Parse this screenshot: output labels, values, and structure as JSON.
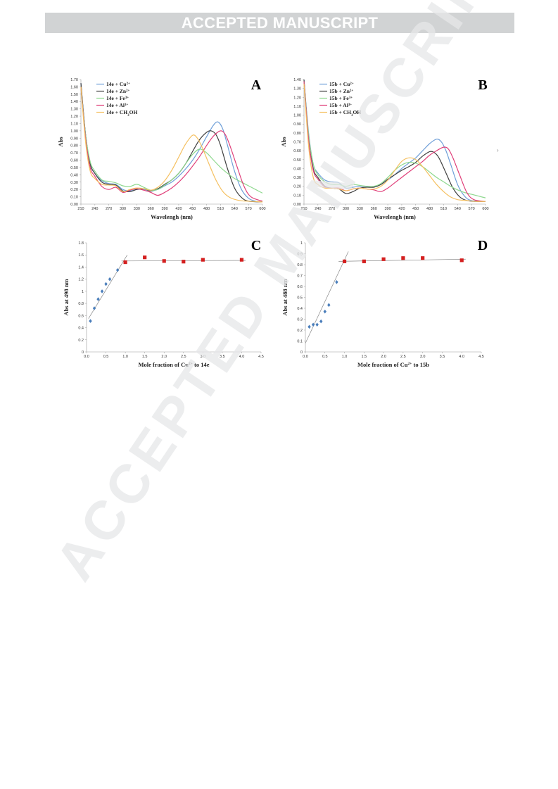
{
  "header": {
    "banner_text": "ACCEPTED MANUSCRIPT"
  },
  "watermark": {
    "text": "ACCEPTED MANUSCRIPT",
    "color": "#e6e7e8"
  },
  "side_mark": "›",
  "chart_data": [
    {
      "id": "A",
      "type": "line",
      "panel_label": "A",
      "xlabel": "Wavelengh (nm)",
      "ylabel": "Abs",
      "xlim": [
        210,
        600
      ],
      "ylim": [
        0,
        1.7
      ],
      "x_ticks": [
        210,
        240,
        270,
        300,
        330,
        360,
        390,
        420,
        450,
        480,
        510,
        540,
        570,
        600
      ],
      "y_ticks": [
        0,
        0.1,
        0.2,
        0.3,
        0.4,
        0.5,
        0.6,
        0.7,
        0.8,
        0.9,
        1.0,
        1.1,
        1.2,
        1.3,
        1.4,
        1.5,
        1.6,
        1.7
      ],
      "y_tick_labels": [
        "0.00",
        "0.10",
        "0.20",
        "0.30",
        "0.40",
        "0.50",
        "0.60",
        "0.70",
        "0.80",
        "0.90",
        "1.00",
        "1.10",
        "1.20",
        "1.30",
        "1.40",
        "1.50",
        "1.60",
        "1.70"
      ],
      "legend_position": "top-left",
      "series": [
        {
          "name": "14e + Cu",
          "ion": "2+",
          "color": "#6f9fd8",
          "x": [
            210,
            220,
            230,
            240,
            255,
            270,
            285,
            300,
            315,
            330,
            345,
            360,
            375,
            390,
            405,
            420,
            435,
            450,
            465,
            480,
            495,
            505,
            515,
            525,
            540,
            555,
            570,
            585,
            600
          ],
          "y": [
            1.65,
            0.95,
            0.55,
            0.42,
            0.32,
            0.28,
            0.27,
            0.2,
            0.18,
            0.2,
            0.2,
            0.18,
            0.2,
            0.25,
            0.3,
            0.38,
            0.48,
            0.6,
            0.75,
            0.92,
            1.08,
            1.12,
            1.02,
            0.8,
            0.45,
            0.2,
            0.08,
            0.04,
            0.03
          ]
        },
        {
          "name": "14e + Zn",
          "ion": "2+",
          "color": "#404040",
          "x": [
            210,
            220,
            230,
            240,
            255,
            270,
            285,
            300,
            315,
            330,
            345,
            360,
            375,
            390,
            405,
            420,
            435,
            450,
            465,
            480,
            490,
            500,
            510,
            525,
            540,
            555,
            570,
            600
          ],
          "y": [
            1.65,
            0.95,
            0.55,
            0.42,
            0.3,
            0.27,
            0.26,
            0.18,
            0.17,
            0.2,
            0.21,
            0.18,
            0.21,
            0.27,
            0.33,
            0.42,
            0.55,
            0.72,
            0.88,
            0.98,
            1.0,
            0.95,
            0.8,
            0.48,
            0.22,
            0.09,
            0.04,
            0.03
          ]
        },
        {
          "name": "14e + Fe",
          "ion": "3+",
          "color": "#8ed88e",
          "x": [
            210,
            220,
            230,
            240,
            255,
            270,
            285,
            300,
            315,
            330,
            345,
            360,
            375,
            390,
            405,
            420,
            435,
            450,
            465,
            480,
            495,
            510,
            525,
            540,
            555,
            570,
            585,
            600
          ],
          "y": [
            1.6,
            0.95,
            0.58,
            0.45,
            0.33,
            0.31,
            0.29,
            0.25,
            0.24,
            0.27,
            0.23,
            0.19,
            0.2,
            0.26,
            0.33,
            0.42,
            0.55,
            0.68,
            0.75,
            0.7,
            0.6,
            0.5,
            0.42,
            0.35,
            0.3,
            0.25,
            0.2,
            0.15
          ]
        },
        {
          "name": "14e + Al",
          "ion": "3+",
          "color": "#e0407a",
          "x": [
            210,
            220,
            230,
            240,
            255,
            270,
            285,
            300,
            315,
            330,
            345,
            360,
            375,
            390,
            405,
            420,
            435,
            450,
            465,
            480,
            495,
            510,
            520,
            530,
            545,
            560,
            575,
            600
          ],
          "y": [
            1.6,
            0.9,
            0.5,
            0.38,
            0.24,
            0.2,
            0.23,
            0.16,
            0.19,
            0.21,
            0.19,
            0.16,
            0.12,
            0.16,
            0.22,
            0.3,
            0.4,
            0.52,
            0.65,
            0.8,
            0.93,
            1.0,
            0.95,
            0.8,
            0.52,
            0.25,
            0.1,
            0.04
          ]
        },
        {
          "name": "14e + CH",
          "ion": "OH",
          "color": "#f5c060",
          "x": [
            210,
            220,
            230,
            240,
            255,
            270,
            285,
            300,
            315,
            330,
            345,
            360,
            375,
            390,
            405,
            420,
            435,
            450,
            460,
            470,
            485,
            500,
            515,
            530,
            550,
            570,
            600
          ],
          "y": [
            1.6,
            0.85,
            0.45,
            0.35,
            0.27,
            0.26,
            0.25,
            0.17,
            0.2,
            0.22,
            0.21,
            0.19,
            0.23,
            0.32,
            0.46,
            0.64,
            0.82,
            0.94,
            0.9,
            0.78,
            0.55,
            0.33,
            0.17,
            0.09,
            0.05,
            0.04,
            0.03
          ]
        }
      ]
    },
    {
      "id": "B",
      "type": "line",
      "panel_label": "B",
      "xlabel": "Wavelengh (nm)",
      "ylabel": "Abs",
      "xlim": [
        210,
        600
      ],
      "ylim": [
        0,
        1.4
      ],
      "x_ticks": [
        210,
        240,
        270,
        300,
        330,
        360,
        390,
        420,
        450,
        480,
        510,
        540,
        570,
        600
      ],
      "y_ticks": [
        0,
        0.1,
        0.2,
        0.3,
        0.4,
        0.5,
        0.6,
        0.7,
        0.8,
        0.9,
        1.0,
        1.1,
        1.2,
        1.3,
        1.4
      ],
      "y_tick_labels": [
        "0.00",
        "0.10",
        "0.20",
        "0.30",
        "0.40",
        "0.50",
        "0.60",
        "0.70",
        "0.80",
        "0.90",
        "1.00",
        "1.10",
        "1.20",
        "1.30",
        "1.40"
      ],
      "legend_position": "top-left",
      "series": [
        {
          "name": "15b + Cu",
          "ion": "2+",
          "color": "#6f9fd8",
          "x": [
            210,
            220,
            230,
            240,
            255,
            270,
            285,
            300,
            315,
            330,
            345,
            360,
            375,
            390,
            405,
            420,
            435,
            450,
            465,
            480,
            495,
            505,
            515,
            525,
            540,
            555,
            570,
            600
          ],
          "y": [
            1.4,
            0.8,
            0.45,
            0.35,
            0.27,
            0.25,
            0.24,
            0.18,
            0.19,
            0.2,
            0.2,
            0.19,
            0.22,
            0.27,
            0.33,
            0.4,
            0.46,
            0.52,
            0.6,
            0.68,
            0.73,
            0.7,
            0.6,
            0.45,
            0.22,
            0.09,
            0.04,
            0.03
          ]
        },
        {
          "name": "15b + Zn",
          "ion": "2+",
          "color": "#404040",
          "x": [
            210,
            220,
            230,
            240,
            255,
            270,
            285,
            300,
            315,
            330,
            345,
            360,
            375,
            390,
            405,
            420,
            435,
            450,
            465,
            480,
            490,
            500,
            515,
            530,
            545,
            560,
            580,
            600
          ],
          "y": [
            1.4,
            0.75,
            0.4,
            0.3,
            0.2,
            0.18,
            0.17,
            0.12,
            0.14,
            0.18,
            0.19,
            0.19,
            0.22,
            0.28,
            0.33,
            0.38,
            0.42,
            0.47,
            0.54,
            0.59,
            0.58,
            0.52,
            0.35,
            0.18,
            0.08,
            0.04,
            0.03,
            0.03
          ]
        },
        {
          "name": "15b + Fe",
          "ion": "3+",
          "color": "#8ed88e",
          "x": [
            210,
            220,
            230,
            240,
            255,
            270,
            285,
            300,
            315,
            330,
            345,
            360,
            375,
            390,
            405,
            420,
            435,
            450,
            465,
            480,
            495,
            510,
            525,
            540,
            555,
            570,
            585,
            600
          ],
          "y": [
            1.38,
            0.78,
            0.45,
            0.33,
            0.25,
            0.22,
            0.22,
            0.2,
            0.22,
            0.21,
            0.2,
            0.2,
            0.23,
            0.3,
            0.38,
            0.44,
            0.47,
            0.46,
            0.42,
            0.36,
            0.3,
            0.25,
            0.2,
            0.16,
            0.13,
            0.11,
            0.09,
            0.07
          ]
        },
        {
          "name": "15b + Al",
          "ion": "3+",
          "color": "#e0407a",
          "x": [
            210,
            220,
            230,
            240,
            255,
            270,
            285,
            300,
            315,
            330,
            345,
            360,
            375,
            390,
            405,
            420,
            435,
            450,
            465,
            480,
            495,
            510,
            520,
            530,
            545,
            560,
            575,
            600
          ],
          "y": [
            1.38,
            0.72,
            0.38,
            0.28,
            0.19,
            0.18,
            0.18,
            0.15,
            0.17,
            0.18,
            0.17,
            0.16,
            0.14,
            0.18,
            0.24,
            0.3,
            0.36,
            0.42,
            0.48,
            0.55,
            0.6,
            0.64,
            0.62,
            0.52,
            0.32,
            0.13,
            0.05,
            0.03
          ]
        },
        {
          "name": "15b + CH",
          "ion": "OH",
          "color": "#f5c060",
          "x": [
            210,
            220,
            230,
            240,
            255,
            270,
            285,
            300,
            315,
            330,
            345,
            360,
            375,
            390,
            405,
            420,
            435,
            450,
            465,
            480,
            495,
            510,
            525,
            540,
            560,
            580,
            600
          ],
          "y": [
            1.35,
            0.65,
            0.3,
            0.22,
            0.18,
            0.18,
            0.17,
            0.15,
            0.17,
            0.18,
            0.17,
            0.17,
            0.2,
            0.27,
            0.38,
            0.48,
            0.52,
            0.5,
            0.42,
            0.32,
            0.22,
            0.14,
            0.08,
            0.05,
            0.04,
            0.03,
            0.03
          ]
        }
      ]
    },
    {
      "id": "C",
      "type": "scatter",
      "panel_label": "C",
      "xlabel": "Mole fraction of Cu",
      "xlabel_sup": "2+",
      "xlabel_suffix": " to 14e",
      "ylabel": "Abs at 498 nm",
      "xlim": [
        0,
        4.5
      ],
      "ylim": [
        0,
        1.8
      ],
      "x_ticks": [
        0,
        0.5,
        1.0,
        1.5,
        2.0,
        2.5,
        3.0,
        3.5,
        4.0,
        4.5
      ],
      "x_tick_labels": [
        "0.0",
        "0.5",
        "1.0",
        "1.5",
        "2.0",
        "2.5",
        "3.0",
        "3.5",
        "4.0",
        "4.5"
      ],
      "y_ticks": [
        0,
        0.2,
        0.4,
        0.6,
        0.8,
        1.0,
        1.2,
        1.4,
        1.6,
        1.8
      ],
      "y_tick_labels": [
        "0",
        "0.2",
        "0.4",
        "0.6",
        "0.8",
        "1",
        "1.2",
        "1.4",
        "1.6",
        "1.8"
      ],
      "series": [
        {
          "marker": "diamond",
          "color": "#4a7ebb",
          "x": [
            0.1,
            0.2,
            0.3,
            0.4,
            0.5,
            0.6,
            0.8
          ],
          "y": [
            0.51,
            0.72,
            0.87,
            1.0,
            1.12,
            1.2,
            1.35
          ]
        },
        {
          "marker": "square",
          "color": "#d42020",
          "x": [
            1.0,
            1.5,
            2.0,
            2.5,
            3.0,
            4.0
          ],
          "y": [
            1.48,
            1.56,
            1.5,
            1.49,
            1.52,
            1.52
          ]
        }
      ],
      "trendlines": [
        {
          "color": "#888888",
          "x": [
            0.05,
            1.05
          ],
          "y": [
            0.55,
            1.6
          ]
        },
        {
          "color": "#888888",
          "x": [
            0.9,
            4.1
          ],
          "y": [
            1.5,
            1.51
          ]
        }
      ]
    },
    {
      "id": "D",
      "type": "scatter",
      "panel_label": "D",
      "xlabel": "Mole fraction of Cu",
      "xlabel_sup": "2+",
      "xlabel_suffix": " to 15b",
      "ylabel": "Abs at 488 nm",
      "xlim": [
        0,
        4.5
      ],
      "ylim": [
        0,
        1.0
      ],
      "x_ticks": [
        0,
        0.5,
        1.0,
        1.5,
        2.0,
        2.5,
        3.0,
        3.5,
        4.0,
        4.5
      ],
      "x_tick_labels": [
        "0.0",
        "0.5",
        "1.0",
        "1.5",
        "2.0",
        "2.5",
        "3.0",
        "3.5",
        "4.0",
        "4.5"
      ],
      "y_ticks": [
        0,
        0.1,
        0.2,
        0.3,
        0.4,
        0.5,
        0.6,
        0.7,
        0.8,
        0.9,
        1.0
      ],
      "y_tick_labels": [
        "0",
        "0.1",
        "0.2",
        "0.3",
        "0.4",
        "0.5",
        "0.6",
        "0.7",
        "0.8",
        "0.9",
        "1"
      ],
      "series": [
        {
          "marker": "diamond",
          "color": "#4a7ebb",
          "x": [
            0.1,
            0.2,
            0.3,
            0.4,
            0.5,
            0.6,
            0.8
          ],
          "y": [
            0.23,
            0.25,
            0.25,
            0.28,
            0.37,
            0.43,
            0.64
          ]
        },
        {
          "marker": "square",
          "color": "#d42020",
          "x": [
            1.0,
            1.5,
            2.0,
            2.5,
            3.0,
            4.0
          ],
          "y": [
            0.83,
            0.83,
            0.85,
            0.86,
            0.86,
            0.84
          ]
        }
      ],
      "trendlines": [
        {
          "color": "#888888",
          "x": [
            0.0,
            1.1
          ],
          "y": [
            0.08,
            0.92
          ]
        },
        {
          "color": "#888888",
          "x": [
            0.85,
            4.1
          ],
          "y": [
            0.83,
            0.85
          ]
        }
      ]
    }
  ]
}
